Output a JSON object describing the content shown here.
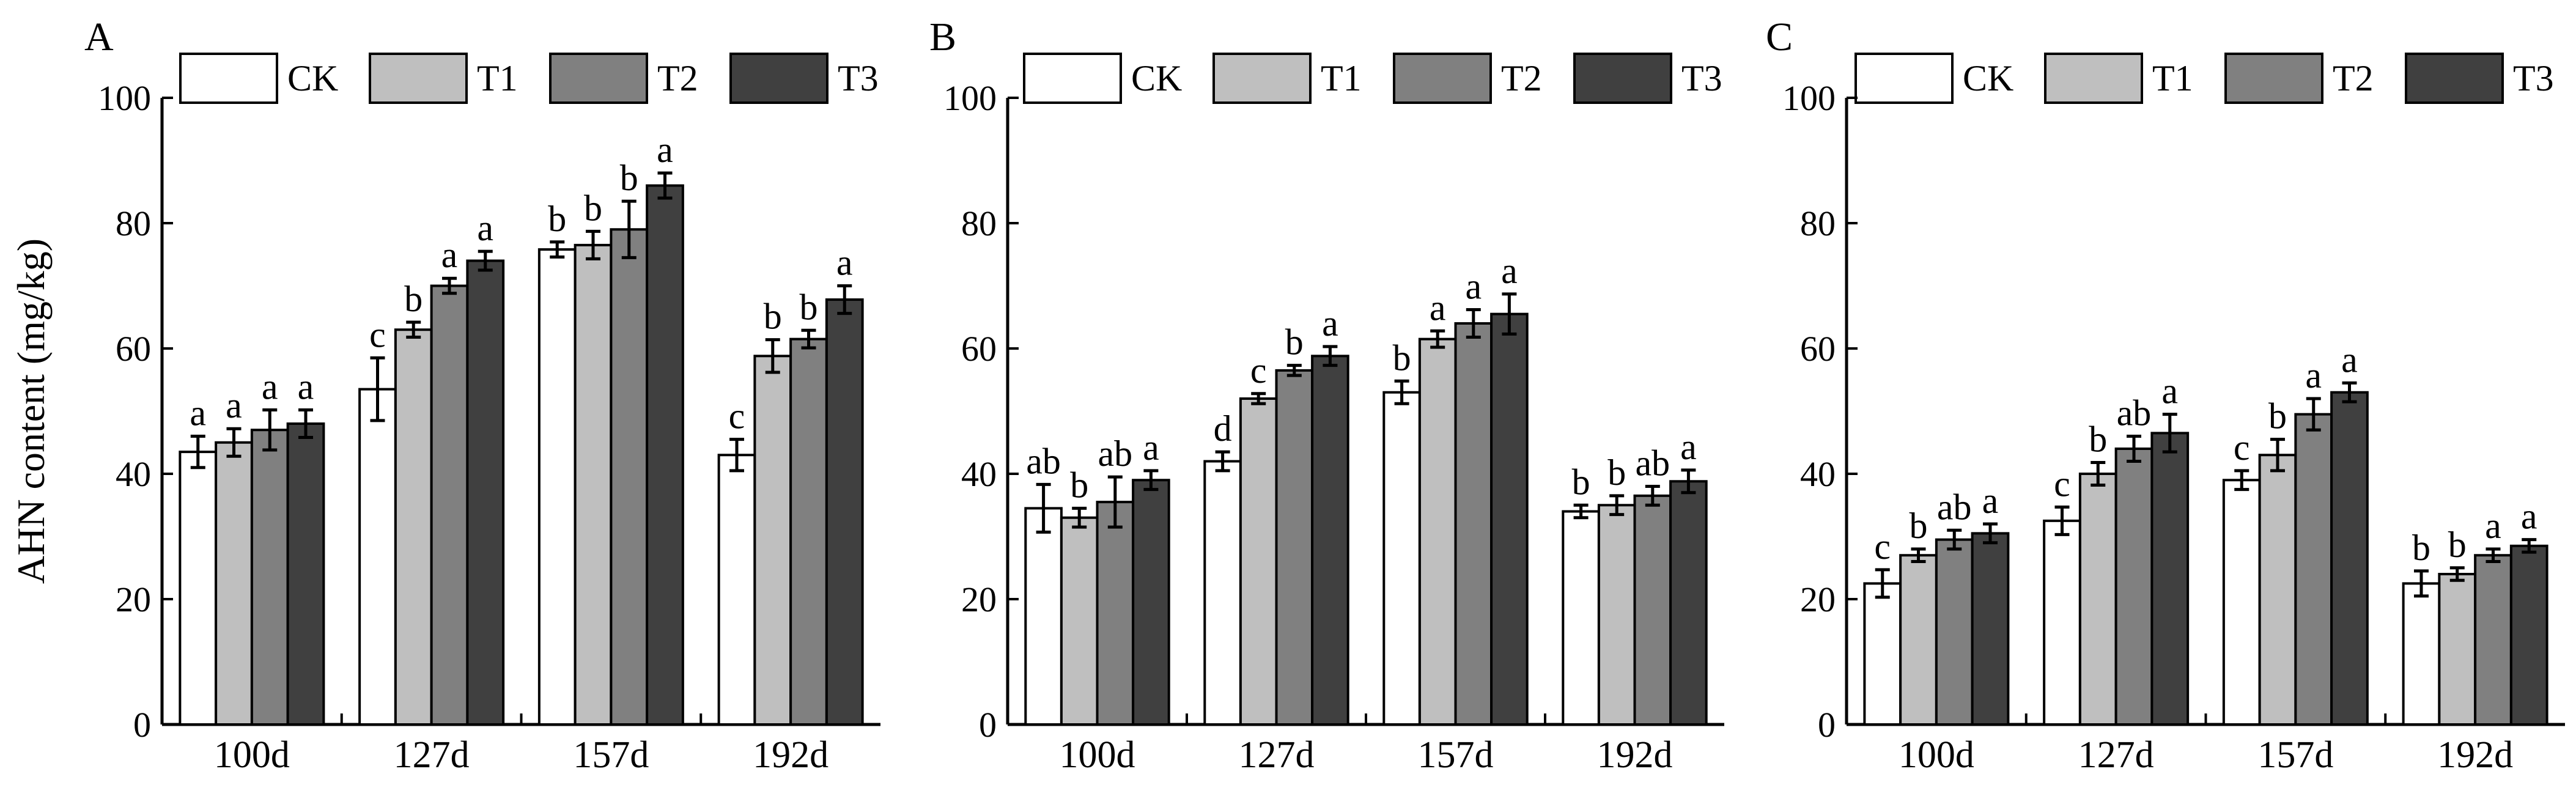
{
  "chart_data": [
    {
      "type": "bar",
      "panel_label": "A",
      "ylabel": "AHN content (mg/kg)",
      "ylim": [
        0,
        100
      ],
      "yticks": [
        0,
        20,
        40,
        60,
        80,
        100
      ],
      "categories": [
        "100d",
        "127d",
        "157d",
        "192d"
      ],
      "series": [
        {
          "name": "CK",
          "color": "#ffffff",
          "values": [
            43.5,
            53.5,
            75.8,
            43.0
          ],
          "errors": [
            2.5,
            5.0,
            1.2,
            2.5
          ],
          "letters": [
            "a",
            "c",
            "b",
            "c"
          ]
        },
        {
          "name": "T1",
          "color": "#bfbfbf",
          "values": [
            45.0,
            63.0,
            76.5,
            58.8
          ],
          "errors": [
            2.2,
            1.2,
            2.2,
            2.6
          ],
          "letters": [
            "a",
            "b",
            "b",
            "b"
          ]
        },
        {
          "name": "T2",
          "color": "#808080",
          "values": [
            47.0,
            70.0,
            79.0,
            61.5
          ],
          "errors": [
            3.2,
            1.2,
            4.5,
            1.4
          ],
          "letters": [
            "a",
            "a",
            "b",
            "b"
          ]
        },
        {
          "name": "T3",
          "color": "#404040",
          "values": [
            48.0,
            74.0,
            86.0,
            67.8
          ],
          "errors": [
            2.2,
            1.5,
            2.0,
            2.2
          ],
          "letters": [
            "a",
            "a",
            "a",
            "a"
          ]
        }
      ]
    },
    {
      "type": "bar",
      "panel_label": "B",
      "ylabel": "",
      "ylim": [
        0,
        100
      ],
      "yticks": [
        0,
        20,
        40,
        60,
        80,
        100
      ],
      "categories": [
        "100d",
        "127d",
        "157d",
        "192d"
      ],
      "series": [
        {
          "name": "CK",
          "color": "#ffffff",
          "values": [
            34.5,
            42.0,
            53.0,
            34.0
          ],
          "errors": [
            3.8,
            1.5,
            1.8,
            1.0
          ],
          "letters": [
            "ab",
            "d",
            "b",
            "b"
          ]
        },
        {
          "name": "T1",
          "color": "#bfbfbf",
          "values": [
            33.0,
            52.0,
            61.5,
            35.0
          ],
          "errors": [
            1.5,
            0.8,
            1.3,
            1.5
          ],
          "letters": [
            "b",
            "c",
            "a",
            "b"
          ]
        },
        {
          "name": "T2",
          "color": "#808080",
          "values": [
            35.5,
            56.5,
            64.0,
            36.5
          ],
          "errors": [
            4.0,
            0.8,
            2.2,
            1.5
          ],
          "letters": [
            "ab",
            "b",
            "a",
            "ab"
          ]
        },
        {
          "name": "T3",
          "color": "#404040",
          "values": [
            39.0,
            58.8,
            65.5,
            38.8
          ],
          "errors": [
            1.5,
            1.5,
            3.2,
            1.8
          ],
          "letters": [
            "a",
            "a",
            "a",
            "a"
          ]
        }
      ]
    },
    {
      "type": "bar",
      "panel_label": "C",
      "ylabel": "",
      "ylim": [
        0,
        100
      ],
      "yticks": [
        0,
        20,
        40,
        60,
        80,
        100
      ],
      "categories": [
        "100d",
        "127d",
        "157d",
        "192d"
      ],
      "series": [
        {
          "name": "CK",
          "color": "#ffffff",
          "values": [
            22.5,
            32.5,
            39.0,
            22.5
          ],
          "errors": [
            2.2,
            2.2,
            1.5,
            2.0
          ],
          "letters": [
            "c",
            "c",
            "c",
            "b"
          ]
        },
        {
          "name": "T1",
          "color": "#bfbfbf",
          "values": [
            27.0,
            40.0,
            43.0,
            24.0
          ],
          "errors": [
            1.0,
            1.8,
            2.5,
            1.0
          ],
          "letters": [
            "b",
            "b",
            "b",
            "b"
          ]
        },
        {
          "name": "T2",
          "color": "#808080",
          "values": [
            29.5,
            44.0,
            49.5,
            27.0
          ],
          "errors": [
            1.5,
            2.0,
            2.5,
            1.0
          ],
          "letters": [
            "ab",
            "ab",
            "a",
            "a"
          ]
        },
        {
          "name": "T3",
          "color": "#404040",
          "values": [
            30.5,
            46.5,
            53.0,
            28.5
          ],
          "errors": [
            1.5,
            3.0,
            1.5,
            1.0
          ],
          "letters": [
            "a",
            "a",
            "a",
            "a"
          ]
        }
      ]
    }
  ]
}
